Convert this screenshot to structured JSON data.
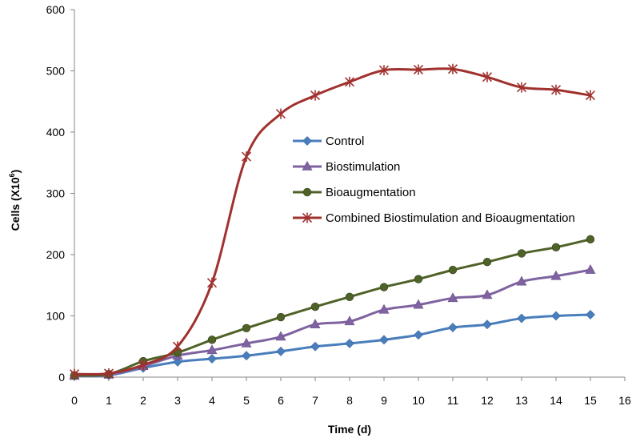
{
  "chart_data": {
    "type": "line",
    "title": "",
    "xlabel": "Time (d)",
    "ylabel_main": "Cells (X10",
    "ylabel_exp": "6",
    "ylabel_close": ")",
    "xlim": [
      0,
      16
    ],
    "ylim": [
      0,
      600
    ],
    "x_ticks": [
      0,
      1,
      2,
      3,
      4,
      5,
      6,
      7,
      8,
      9,
      10,
      11,
      12,
      13,
      14,
      15,
      16
    ],
    "y_ticks": [
      0,
      100,
      200,
      300,
      400,
      500,
      600
    ],
    "grid": false,
    "legend_position": "center-right",
    "x": [
      0,
      1,
      2,
      3,
      4,
      5,
      6,
      7,
      8,
      9,
      10,
      11,
      12,
      13,
      14,
      15
    ],
    "series": [
      {
        "name": "Control",
        "color": "#4a7ebb",
        "marker": "diamond",
        "values": [
          2,
          3,
          15,
          25,
          30,
          35,
          42,
          50,
          55,
          61,
          69,
          81,
          86,
          96,
          100,
          102
        ]
      },
      {
        "name": "Biostimulation",
        "color": "#7f63a0",
        "marker": "triangle",
        "values": [
          2,
          4,
          18,
          35,
          44,
          55,
          66,
          86,
          91,
          110,
          118,
          129,
          134,
          156,
          165,
          175
        ]
      },
      {
        "name": "Bioaugmentation",
        "color": "#4f6228",
        "marker": "circle",
        "values": [
          3,
          5,
          26,
          40,
          61,
          80,
          98,
          115,
          131,
          147,
          160,
          175,
          188,
          202,
          212,
          225
        ]
      },
      {
        "name": "Combined Biostimulation and Bioaugmentation",
        "color": "#a0312e",
        "marker": "star",
        "values": [
          5,
          6,
          20,
          50,
          154,
          360,
          430,
          460,
          482,
          501,
          502,
          503,
          490,
          473,
          469,
          460
        ]
      }
    ]
  }
}
